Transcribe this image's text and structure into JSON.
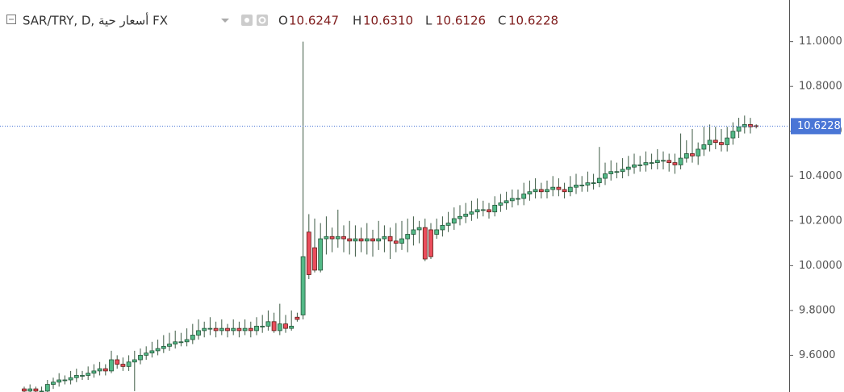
{
  "chart_data": {
    "type": "candlestick",
    "title": "SAR/TRY, D, أسعار حية FX",
    "ohlc_names": [
      "O",
      "H",
      "L",
      "C"
    ],
    "ohlc_labels": [
      "10.6247",
      "10.6310",
      "10.6126",
      "10.6228"
    ],
    "up_color": "#53b987",
    "down_color": "#eb4d5c",
    "last_price_color": "#4a76d6",
    "ylim": [
      9.436,
      11.186
    ],
    "yticks": [
      {
        "value": 9.6,
        "label": "9.6000"
      },
      {
        "value": 9.8,
        "label": "9.8000"
      },
      {
        "value": 10.0,
        "label": "10.0000"
      },
      {
        "value": 10.2,
        "label": "10.2000"
      },
      {
        "value": 10.4,
        "label": "10.4000"
      },
      {
        "value": 10.6,
        "label": "10.6000"
      },
      {
        "value": 10.8,
        "label": "10.8000"
      },
      {
        "value": 11.0,
        "label": "11.0000"
      }
    ],
    "grid": false,
    "ohlc": [
      [
        9.45,
        9.46,
        9.43,
        9.44
      ],
      [
        9.44,
        9.47,
        9.43,
        9.45
      ],
      [
        9.45,
        9.46,
        9.43,
        9.44
      ],
      [
        9.44,
        9.46,
        9.43,
        9.44
      ],
      [
        9.44,
        9.49,
        9.43,
        9.47
      ],
      [
        9.47,
        9.5,
        9.45,
        9.48
      ],
      [
        9.48,
        9.52,
        9.46,
        9.49
      ],
      [
        9.49,
        9.51,
        9.47,
        9.49
      ],
      [
        9.49,
        9.53,
        9.47,
        9.5
      ],
      [
        9.5,
        9.54,
        9.48,
        9.51
      ],
      [
        9.51,
        9.53,
        9.49,
        9.51
      ],
      [
        9.51,
        9.55,
        9.49,
        9.52
      ],
      [
        9.52,
        9.56,
        9.5,
        9.53
      ],
      [
        9.53,
        9.57,
        9.51,
        9.54
      ],
      [
        9.54,
        9.56,
        9.51,
        9.53
      ],
      [
        9.53,
        9.62,
        9.52,
        9.58
      ],
      [
        9.58,
        9.6,
        9.54,
        9.56
      ],
      [
        9.56,
        9.59,
        9.53,
        9.55
      ],
      [
        9.55,
        9.6,
        9.53,
        9.57
      ],
      [
        9.57,
        9.62,
        9.44,
        9.58
      ],
      [
        9.58,
        9.63,
        9.56,
        9.6
      ],
      [
        9.6,
        9.64,
        9.58,
        9.61
      ],
      [
        9.61,
        9.66,
        9.59,
        9.62
      ],
      [
        9.62,
        9.67,
        9.6,
        9.63
      ],
      [
        9.63,
        9.69,
        9.61,
        9.64
      ],
      [
        9.64,
        9.7,
        9.62,
        9.65
      ],
      [
        9.65,
        9.71,
        9.63,
        9.66
      ],
      [
        9.66,
        9.7,
        9.64,
        9.66
      ],
      [
        9.66,
        9.72,
        9.64,
        9.67
      ],
      [
        9.67,
        9.74,
        9.65,
        9.69
      ],
      [
        9.69,
        9.76,
        9.67,
        9.71
      ],
      [
        9.71,
        9.75,
        9.68,
        9.72
      ],
      [
        9.72,
        9.77,
        9.69,
        9.72
      ],
      [
        9.72,
        9.75,
        9.68,
        9.71
      ],
      [
        9.71,
        9.76,
        9.69,
        9.72
      ],
      [
        9.72,
        9.74,
        9.68,
        9.71
      ],
      [
        9.71,
        9.76,
        9.69,
        9.72
      ],
      [
        9.72,
        9.75,
        9.68,
        9.71
      ],
      [
        9.71,
        9.76,
        9.69,
        9.72
      ],
      [
        9.72,
        9.75,
        9.68,
        9.71
      ],
      [
        9.71,
        9.77,
        9.69,
        9.73
      ],
      [
        9.73,
        9.78,
        9.7,
        9.73
      ],
      [
        9.73,
        9.8,
        9.71,
        9.75
      ],
      [
        9.75,
        9.79,
        9.7,
        9.71
      ],
      [
        9.71,
        9.83,
        9.69,
        9.74
      ],
      [
        9.74,
        9.78,
        9.7,
        9.72
      ],
      [
        9.72,
        9.8,
        9.71,
        9.73
      ],
      [
        9.77,
        9.79,
        9.75,
        9.76
      ],
      [
        9.78,
        11.0,
        9.76,
        10.04
      ],
      [
        10.15,
        10.23,
        9.94,
        9.96
      ],
      [
        10.08,
        10.21,
        9.97,
        9.98
      ],
      [
        9.98,
        10.19,
        9.97,
        10.12
      ],
      [
        10.12,
        10.22,
        10.05,
        10.13
      ],
      [
        10.13,
        10.17,
        10.06,
        10.12
      ],
      [
        10.12,
        10.25,
        10.08,
        10.13
      ],
      [
        10.13,
        10.18,
        10.06,
        10.12
      ],
      [
        10.12,
        10.2,
        10.05,
        10.11
      ],
      [
        10.11,
        10.18,
        10.04,
        10.12
      ],
      [
        10.12,
        10.17,
        10.06,
        10.11
      ],
      [
        10.11,
        10.19,
        10.05,
        10.12
      ],
      [
        10.12,
        10.16,
        10.04,
        10.11
      ],
      [
        10.11,
        10.2,
        10.07,
        10.12
      ],
      [
        10.12,
        10.18,
        10.06,
        10.13
      ],
      [
        10.13,
        10.17,
        10.03,
        10.11
      ],
      [
        10.11,
        10.19,
        10.06,
        10.1
      ],
      [
        10.1,
        10.2,
        10.07,
        10.12
      ],
      [
        10.12,
        10.21,
        10.06,
        10.14
      ],
      [
        10.14,
        10.22,
        10.09,
        10.16
      ],
      [
        10.16,
        10.2,
        10.1,
        10.17
      ],
      [
        10.17,
        10.21,
        10.02,
        10.03
      ],
      [
        10.16,
        10.19,
        10.03,
        10.04
      ],
      [
        10.14,
        10.21,
        10.12,
        10.16
      ],
      [
        10.16,
        10.22,
        10.13,
        10.18
      ],
      [
        10.18,
        10.24,
        10.15,
        10.19
      ],
      [
        10.19,
        10.26,
        10.16,
        10.21
      ],
      [
        10.21,
        10.27,
        10.18,
        10.22
      ],
      [
        10.22,
        10.28,
        10.19,
        10.23
      ],
      [
        10.23,
        10.29,
        10.2,
        10.24
      ],
      [
        10.24,
        10.3,
        10.21,
        10.25
      ],
      [
        10.25,
        10.29,
        10.22,
        10.25
      ],
      [
        10.25,
        10.28,
        10.21,
        10.24
      ],
      [
        10.24,
        10.31,
        10.22,
        10.27
      ],
      [
        10.27,
        10.32,
        10.24,
        10.28
      ],
      [
        10.28,
        10.33,
        10.25,
        10.29
      ],
      [
        10.29,
        10.34,
        10.26,
        10.3
      ],
      [
        10.3,
        10.34,
        10.27,
        10.3
      ],
      [
        10.3,
        10.37,
        10.27,
        10.32
      ],
      [
        10.32,
        10.38,
        10.29,
        10.33
      ],
      [
        10.33,
        10.39,
        10.3,
        10.34
      ],
      [
        10.34,
        10.37,
        10.3,
        10.33
      ],
      [
        10.33,
        10.38,
        10.3,
        10.34
      ],
      [
        10.34,
        10.4,
        10.31,
        10.35
      ],
      [
        10.35,
        10.39,
        10.31,
        10.34
      ],
      [
        10.34,
        10.37,
        10.3,
        10.33
      ],
      [
        10.33,
        10.4,
        10.31,
        10.35
      ],
      [
        10.35,
        10.41,
        10.32,
        10.36
      ],
      [
        10.36,
        10.4,
        10.33,
        10.36
      ],
      [
        10.36,
        10.42,
        10.33,
        10.37
      ],
      [
        10.37,
        10.41,
        10.34,
        10.37
      ],
      [
        10.37,
        10.53,
        10.35,
        10.39
      ],
      [
        10.39,
        10.46,
        10.36,
        10.41
      ],
      [
        10.41,
        10.47,
        10.38,
        10.42
      ],
      [
        10.42,
        10.46,
        10.39,
        10.42
      ],
      [
        10.42,
        10.48,
        10.39,
        10.43
      ],
      [
        10.43,
        10.49,
        10.4,
        10.44
      ],
      [
        10.44,
        10.5,
        10.41,
        10.45
      ],
      [
        10.45,
        10.49,
        10.42,
        10.45
      ],
      [
        10.45,
        10.51,
        10.42,
        10.46
      ],
      [
        10.46,
        10.5,
        10.43,
        10.46
      ],
      [
        10.46,
        10.52,
        10.43,
        10.47
      ],
      [
        10.47,
        10.51,
        10.43,
        10.47
      ],
      [
        10.47,
        10.5,
        10.42,
        10.46
      ],
      [
        10.46,
        10.5,
        10.41,
        10.45
      ],
      [
        10.45,
        10.59,
        10.43,
        10.48
      ],
      [
        10.48,
        10.56,
        10.46,
        10.5
      ],
      [
        10.5,
        10.61,
        10.46,
        10.49
      ],
      [
        10.49,
        10.55,
        10.45,
        10.52
      ],
      [
        10.52,
        10.62,
        10.49,
        10.54
      ],
      [
        10.54,
        10.63,
        10.51,
        10.56
      ],
      [
        10.56,
        10.62,
        10.52,
        10.55
      ],
      [
        10.55,
        10.61,
        10.51,
        10.54
      ],
      [
        10.54,
        10.62,
        10.51,
        10.57
      ],
      [
        10.57,
        10.64,
        10.54,
        10.6
      ],
      [
        10.6,
        10.66,
        10.57,
        10.62
      ],
      [
        10.62,
        10.67,
        10.59,
        10.63
      ],
      [
        10.63,
        10.66,
        10.59,
        10.62
      ],
      [
        10.6247,
        10.631,
        10.6126,
        10.6228
      ]
    ]
  }
}
